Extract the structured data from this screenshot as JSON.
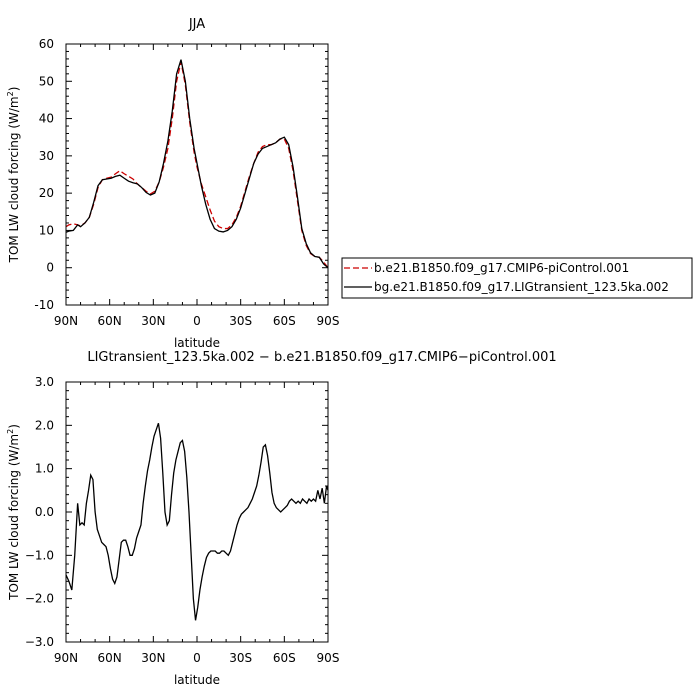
{
  "chart_data": [
    {
      "type": "line",
      "title": "JJA",
      "xlabel": "latitude",
      "ylabel": "TOM LW cloud forcing (W/m",
      "ylabel_sup": "2",
      "ylabel_end": ")",
      "xlim": [
        90,
        -90
      ],
      "ylim": [
        -10,
        60
      ],
      "xticks": [
        90,
        60,
        30,
        0,
        -30,
        -60,
        -90
      ],
      "xtick_labels": [
        "90N",
        "60N",
        "30N",
        "0",
        "30S",
        "60S",
        "90S"
      ],
      "yticks": [
        -10,
        0,
        10,
        20,
        30,
        40,
        50,
        60
      ],
      "ytick_labels": [
        "-10",
        "0",
        "10",
        "20",
        "30",
        "40",
        "50",
        "60"
      ],
      "grid": false,
      "legend_position": "right",
      "series": [
        {
          "name": "b.e21.B1850.f09_g17.CMIP6-piControl.001",
          "color": "#cc0000",
          "dash": "dashed",
          "x": [
            90,
            88,
            85,
            82,
            80,
            77,
            74,
            71,
            68,
            65,
            62,
            59,
            56,
            53,
            50,
            47,
            44,
            41,
            38,
            35,
            32,
            29,
            26,
            23,
            20,
            17,
            14,
            11,
            8,
            5,
            2,
            0,
            -3,
            -6,
            -9,
            -12,
            -15,
            -18,
            -21,
            -24,
            -27,
            -30,
            -33,
            -36,
            -39,
            -42,
            -45,
            -48,
            -51,
            -54,
            -57,
            -60,
            -63,
            -66,
            -69,
            -72,
            -75,
            -78,
            -81,
            -84,
            -87,
            -90
          ],
          "y": [
            11,
            11.5,
            11.8,
            11.5,
            11.2,
            12,
            13.5,
            17,
            21.5,
            23.6,
            24,
            24.3,
            25.2,
            26,
            25.2,
            24.5,
            23.8,
            22.5,
            21.5,
            20.5,
            19.8,
            20.5,
            23,
            27,
            32,
            40,
            50,
            55.2,
            49,
            39,
            31,
            27,
            22.5,
            19,
            15.5,
            12.5,
            11,
            10.5,
            10.5,
            11.5,
            13.5,
            16.5,
            20.5,
            24.5,
            28,
            31,
            32.5,
            33,
            33,
            33.5,
            34.5,
            34.5,
            32,
            26,
            18,
            10,
            6,
            3.8,
            3,
            2.8,
            1.5,
            0
          ]
        },
        {
          "name": "bg.e21.B1850.f09_g17.LIGtransient_123.5ka.002",
          "color": "#000000",
          "dash": "solid",
          "x": [
            90,
            88,
            85,
            82,
            80,
            77,
            74,
            71,
            68,
            65,
            62,
            59,
            56,
            53,
            50,
            47,
            44,
            41,
            38,
            35,
            32,
            29,
            26,
            23,
            20,
            17,
            14,
            11,
            8,
            5,
            2,
            0,
            -3,
            -6,
            -9,
            -12,
            -15,
            -18,
            -21,
            -24,
            -27,
            -30,
            -33,
            -36,
            -39,
            -42,
            -45,
            -48,
            -51,
            -54,
            -57,
            -60,
            -63,
            -66,
            -69,
            -72,
            -75,
            -78,
            -81,
            -84,
            -87,
            -90
          ],
          "y": [
            9.5,
            9.8,
            10,
            11.5,
            11,
            12,
            13.5,
            17.5,
            22,
            23.6,
            23.8,
            24,
            24.5,
            24.8,
            24,
            23.2,
            22.8,
            22.5,
            21.5,
            20.2,
            19.5,
            20,
            23,
            28,
            34,
            42,
            52,
            55.8,
            50,
            40,
            32,
            28,
            22,
            17,
            13,
            10.5,
            9.8,
            9.6,
            10,
            11,
            13,
            16,
            20,
            24,
            28,
            30.5,
            32,
            32.5,
            33,
            33.5,
            34.5,
            35,
            33,
            27,
            19,
            10.5,
            6.5,
            4,
            3,
            2.8,
            1,
            0
          ]
        }
      ]
    },
    {
      "type": "line",
      "title": "LIGtransient_123.5ka.002 − b.e21.B1850.f09_g17.CMIP6−piControl.001",
      "xlabel": "latitude",
      "ylabel": "TOM LW cloud forcing (W/m",
      "ylabel_sup": "2",
      "ylabel_end": ")",
      "xlim": [
        90,
        -90
      ],
      "ylim": [
        -3.0,
        3.0
      ],
      "xticks": [
        90,
        60,
        30,
        0,
        -30,
        -60,
        -90
      ],
      "xtick_labels": [
        "90N",
        "60N",
        "30N",
        "0",
        "30S",
        "60S",
        "90S"
      ],
      "yticks": [
        -3,
        -2,
        -1,
        0,
        1,
        2,
        3
      ],
      "ytick_labels": [
        "−3.0",
        "−2.0",
        "−1.0",
        "0.0",
        "1.0",
        "2.0",
        "3.0"
      ],
      "grid": false,
      "series": [
        {
          "color": "#000000",
          "dash": "solid",
          "x": [
            90,
            88,
            86,
            84,
            82,
            80.5,
            79,
            77.5,
            76,
            74.5,
            73,
            71.5,
            70,
            68.5,
            67,
            65.5,
            64,
            62.5,
            61,
            59.5,
            58,
            56.5,
            55,
            53.5,
            52,
            50.5,
            49,
            47.5,
            46,
            44.5,
            43,
            41.5,
            40,
            38.5,
            37,
            35.5,
            34,
            32.5,
            31,
            29.5,
            28,
            26.5,
            25,
            23.5,
            22,
            20.5,
            19,
            17.5,
            16,
            14.5,
            13,
            11.5,
            10,
            8.5,
            7,
            5.5,
            4,
            2.5,
            1,
            -0.5,
            -2,
            -3.5,
            -5,
            -6.5,
            -8,
            -9.5,
            -11,
            -12.5,
            -14,
            -15.5,
            -17,
            -18.5,
            -20,
            -21.5,
            -23,
            -24.5,
            -26,
            -27.5,
            -29,
            -30.5,
            -32,
            -33.5,
            -35,
            -36.5,
            -38,
            -39.5,
            -41,
            -42.5,
            -44,
            -45.5,
            -47,
            -48.5,
            -50,
            -51.5,
            -53,
            -54.5,
            -56,
            -57.5,
            -59,
            -60.5,
            -62,
            -63.5,
            -65,
            -66.5,
            -68,
            -69.5,
            -71,
            -72.5,
            -74,
            -75.5,
            -77,
            -78.5,
            -80,
            -81.5,
            -83,
            -84.5,
            -86,
            -87.5,
            -89,
            -90
          ],
          "y": [
            -1.45,
            -1.6,
            -1.8,
            -1.0,
            0.2,
            -0.3,
            -0.25,
            -0.3,
            0.2,
            0.5,
            0.85,
            0.75,
            0.0,
            -0.4,
            -0.55,
            -0.7,
            -0.75,
            -0.8,
            -1.0,
            -1.3,
            -1.55,
            -1.65,
            -1.5,
            -1.1,
            -0.7,
            -0.65,
            -0.65,
            -0.8,
            -1.0,
            -1.0,
            -0.85,
            -0.6,
            -0.45,
            -0.3,
            0.2,
            0.6,
            0.95,
            1.2,
            1.5,
            1.75,
            1.9,
            2.05,
            1.7,
            0.9,
            0.0,
            -0.3,
            -0.2,
            0.4,
            0.9,
            1.2,
            1.4,
            1.6,
            1.65,
            1.4,
            0.8,
            0.0,
            -1.0,
            -2.0,
            -2.5,
            -2.2,
            -1.8,
            -1.5,
            -1.25,
            -1.05,
            -0.95,
            -0.9,
            -0.9,
            -0.9,
            -0.95,
            -0.95,
            -0.9,
            -0.9,
            -0.95,
            -1.0,
            -0.9,
            -0.7,
            -0.5,
            -0.3,
            -0.15,
            -0.05,
            0.0,
            0.05,
            0.1,
            0.2,
            0.3,
            0.45,
            0.6,
            0.85,
            1.15,
            1.5,
            1.55,
            1.3,
            0.9,
            0.45,
            0.2,
            0.1,
            0.05,
            0.0,
            0.05,
            0.1,
            0.15,
            0.25,
            0.3,
            0.25,
            0.2,
            0.25,
            0.2,
            0.3,
            0.25,
            0.2,
            0.3,
            0.25,
            0.3,
            0.25,
            0.5,
            0.3,
            0.55,
            0.2,
            0.6,
            0.5
          ]
        }
      ]
    }
  ]
}
